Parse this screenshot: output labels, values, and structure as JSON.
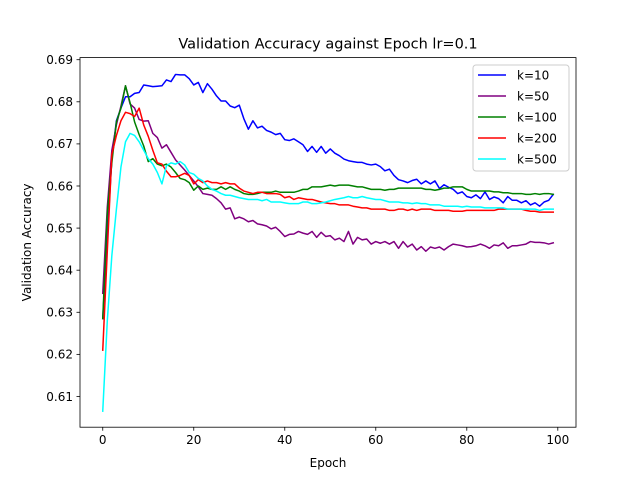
{
  "chart_data": {
    "type": "line",
    "title": "Validation Accuracy against Epoch lr=0.1",
    "xlabel": "Epoch",
    "ylabel": "Validation Accuracy",
    "xlim": [
      -5,
      104
    ],
    "ylim": [
      0.6027,
      0.6905
    ],
    "xticks": [
      0,
      20,
      40,
      60,
      80,
      100
    ],
    "yticks": [
      0.61,
      0.62,
      0.63,
      0.64,
      0.65,
      0.66,
      0.67,
      0.68,
      0.69
    ],
    "grid": false,
    "legend_position": "top-right",
    "series": [
      {
        "name": "k=10",
        "color": "#0000ff",
        "x": [
          0,
          1,
          2,
          3,
          4,
          5,
          6,
          7,
          8,
          9,
          10,
          11,
          12,
          13,
          14,
          15,
          16,
          17,
          18,
          19,
          20,
          21,
          22,
          23,
          24,
          25,
          26,
          27,
          28,
          29,
          30,
          31,
          32,
          33,
          34,
          35,
          36,
          37,
          38,
          39,
          40,
          41,
          42,
          43,
          44,
          45,
          46,
          47,
          48,
          49,
          50,
          51,
          52,
          53,
          54,
          55,
          56,
          57,
          58,
          59,
          60,
          61,
          62,
          63,
          64,
          65,
          66,
          67,
          68,
          69,
          70,
          71,
          72,
          73,
          74,
          75,
          76,
          77,
          78,
          79,
          80,
          81,
          82,
          83,
          84,
          85,
          86,
          87,
          88,
          89,
          90,
          91,
          92,
          93,
          94,
          95,
          96,
          97,
          98,
          99
        ],
        "y": [
          0.6285,
          0.648,
          0.6665,
          0.6755,
          0.6785,
          0.6812,
          0.6812,
          0.682,
          0.6822,
          0.684,
          0.6838,
          0.6836,
          0.6837,
          0.6838,
          0.6852,
          0.6848,
          0.6865,
          0.6864,
          0.6864,
          0.6855,
          0.684,
          0.6846,
          0.6822,
          0.6843,
          0.683,
          0.6814,
          0.6802,
          0.6802,
          0.679,
          0.6786,
          0.6792,
          0.676,
          0.6735,
          0.6755,
          0.6738,
          0.6742,
          0.6732,
          0.6728,
          0.6722,
          0.6725,
          0.671,
          0.6708,
          0.6712,
          0.6705,
          0.6698,
          0.6682,
          0.6694,
          0.668,
          0.6694,
          0.6678,
          0.6688,
          0.6678,
          0.6672,
          0.6664,
          0.666,
          0.6658,
          0.6656,
          0.6656,
          0.6652,
          0.665,
          0.6652,
          0.6646,
          0.6636,
          0.664,
          0.6625,
          0.6615,
          0.6612,
          0.6608,
          0.6613,
          0.6616,
          0.6605,
          0.6612,
          0.6605,
          0.6612,
          0.6594,
          0.6603,
          0.6597,
          0.6592,
          0.6582,
          0.6586,
          0.6575,
          0.6572,
          0.6579,
          0.657,
          0.6586,
          0.6568,
          0.6574,
          0.657,
          0.656,
          0.6575,
          0.6566,
          0.6566,
          0.656,
          0.6565,
          0.6555,
          0.656,
          0.6552,
          0.6562,
          0.6566,
          0.658
        ]
      },
      {
        "name": "k=50",
        "color": "#800080",
        "x": [
          0,
          1,
          2,
          3,
          4,
          5,
          6,
          7,
          8,
          9,
          10,
          11,
          12,
          13,
          14,
          15,
          16,
          17,
          18,
          19,
          20,
          21,
          22,
          23,
          24,
          25,
          26,
          27,
          28,
          29,
          30,
          31,
          32,
          33,
          34,
          35,
          36,
          37,
          38,
          39,
          40,
          41,
          42,
          43,
          44,
          45,
          46,
          47,
          48,
          49,
          50,
          51,
          52,
          53,
          54,
          55,
          56,
          57,
          58,
          59,
          60,
          61,
          62,
          63,
          64,
          65,
          66,
          67,
          68,
          69,
          70,
          71,
          72,
          73,
          74,
          75,
          76,
          77,
          78,
          79,
          80,
          81,
          82,
          83,
          84,
          85,
          86,
          87,
          88,
          89,
          90,
          91,
          92,
          93,
          94,
          95,
          96,
          97,
          98,
          99
        ],
        "y": [
          0.6345,
          0.655,
          0.6685,
          0.6745,
          0.679,
          0.6838,
          0.6795,
          0.6785,
          0.6758,
          0.6754,
          0.6755,
          0.6725,
          0.6715,
          0.669,
          0.6698,
          0.668,
          0.6662,
          0.665,
          0.6638,
          0.6625,
          0.6612,
          0.6598,
          0.6582,
          0.658,
          0.6578,
          0.657,
          0.656,
          0.6545,
          0.6548,
          0.6522,
          0.6526,
          0.6522,
          0.6515,
          0.6518,
          0.651,
          0.6508,
          0.6505,
          0.6498,
          0.6502,
          0.6492,
          0.648,
          0.6485,
          0.6486,
          0.6492,
          0.6488,
          0.6485,
          0.6492,
          0.6478,
          0.649,
          0.648,
          0.6482,
          0.6472,
          0.6476,
          0.6468,
          0.6492,
          0.6462,
          0.6478,
          0.6472,
          0.6474,
          0.6462,
          0.6468,
          0.6464,
          0.6468,
          0.6462,
          0.6468,
          0.6452,
          0.6468,
          0.6455,
          0.6462,
          0.6448,
          0.6456,
          0.6445,
          0.6455,
          0.6452,
          0.6455,
          0.6448,
          0.6456,
          0.6462,
          0.646,
          0.6458,
          0.6455,
          0.6456,
          0.6458,
          0.6462,
          0.6458,
          0.6452,
          0.646,
          0.6458,
          0.6465,
          0.6452,
          0.6458,
          0.6458,
          0.646,
          0.6462,
          0.6468,
          0.6466,
          0.6466,
          0.6465,
          0.6462,
          0.6465
        ]
      },
      {
        "name": "k=100",
        "color": "#008000",
        "x": [
          0,
          1,
          2,
          3,
          4,
          5,
          6,
          7,
          8,
          9,
          10,
          11,
          12,
          13,
          14,
          15,
          16,
          17,
          18,
          19,
          20,
          21,
          22,
          23,
          24,
          25,
          26,
          27,
          28,
          29,
          30,
          31,
          32,
          33,
          34,
          35,
          36,
          37,
          38,
          39,
          40,
          41,
          42,
          43,
          44,
          45,
          46,
          47,
          48,
          49,
          50,
          51,
          52,
          53,
          54,
          55,
          56,
          57,
          58,
          59,
          60,
          61,
          62,
          63,
          64,
          65,
          66,
          67,
          68,
          69,
          70,
          71,
          72,
          73,
          74,
          75,
          76,
          77,
          78,
          79,
          80,
          81,
          82,
          83,
          84,
          85,
          86,
          87,
          88,
          89,
          90,
          91,
          92,
          93,
          94,
          95,
          96,
          97,
          98,
          99
        ],
        "y": [
          0.6285,
          0.6535,
          0.6655,
          0.6752,
          0.6785,
          0.6838,
          0.6798,
          0.6752,
          0.6722,
          0.6695,
          0.6658,
          0.6665,
          0.6652,
          0.6648,
          0.6652,
          0.6645,
          0.6632,
          0.6618,
          0.6615,
          0.6608,
          0.659,
          0.66,
          0.6592,
          0.6595,
          0.6592,
          0.6592,
          0.6598,
          0.6592,
          0.6598,
          0.6592,
          0.6588,
          0.6582,
          0.658,
          0.658,
          0.6582,
          0.6585,
          0.6585,
          0.6585,
          0.6588,
          0.6585,
          0.6585,
          0.6585,
          0.6585,
          0.6588,
          0.6592,
          0.6592,
          0.6598,
          0.6598,
          0.6598,
          0.66,
          0.6602,
          0.66,
          0.6602,
          0.6602,
          0.6602,
          0.66,
          0.6598,
          0.6598,
          0.6595,
          0.6592,
          0.6592,
          0.6592,
          0.659,
          0.6592,
          0.6592,
          0.6595,
          0.6595,
          0.6595,
          0.6595,
          0.6595,
          0.6595,
          0.6592,
          0.6592,
          0.659,
          0.6592,
          0.6595,
          0.6595,
          0.6598,
          0.6598,
          0.6598,
          0.6592,
          0.6588,
          0.6588,
          0.6588,
          0.6588,
          0.6588,
          0.6586,
          0.6586,
          0.6584,
          0.6584,
          0.6582,
          0.6582,
          0.6582,
          0.658,
          0.658,
          0.6582,
          0.658,
          0.6582,
          0.6582,
          0.658
        ]
      },
      {
        "name": "k=200",
        "color": "#ff0000",
        "x": [
          0,
          1,
          2,
          3,
          4,
          5,
          6,
          7,
          8,
          9,
          10,
          11,
          12,
          13,
          14,
          15,
          16,
          17,
          18,
          19,
          20,
          21,
          22,
          23,
          24,
          25,
          26,
          27,
          28,
          29,
          30,
          31,
          32,
          33,
          34,
          35,
          36,
          37,
          38,
          39,
          40,
          41,
          42,
          43,
          44,
          45,
          46,
          47,
          48,
          49,
          50,
          51,
          52,
          53,
          54,
          55,
          56,
          57,
          58,
          59,
          60,
          61,
          62,
          63,
          64,
          65,
          66,
          67,
          68,
          69,
          70,
          71,
          72,
          73,
          74,
          75,
          76,
          77,
          78,
          79,
          80,
          81,
          82,
          83,
          84,
          85,
          86,
          87,
          88,
          89,
          90,
          91,
          92,
          93,
          94,
          95,
          96,
          97,
          98,
          99
        ],
        "y": [
          0.621,
          0.6445,
          0.6675,
          0.672,
          0.6755,
          0.6775,
          0.6772,
          0.6765,
          0.6785,
          0.6745,
          0.6718,
          0.6685,
          0.6655,
          0.6652,
          0.6635,
          0.6622,
          0.6622,
          0.6625,
          0.663,
          0.6625,
          0.6605,
          0.6615,
          0.6608,
          0.6612,
          0.6608,
          0.6608,
          0.6605,
          0.6608,
          0.6605,
          0.6605,
          0.6595,
          0.6588,
          0.6585,
          0.6582,
          0.6585,
          0.6585,
          0.6582,
          0.6582,
          0.6582,
          0.658,
          0.6572,
          0.6575,
          0.6568,
          0.6572,
          0.657,
          0.6568,
          0.6568,
          0.6565,
          0.6562,
          0.656,
          0.6558,
          0.6558,
          0.6555,
          0.6555,
          0.6555,
          0.6552,
          0.655,
          0.6548,
          0.6548,
          0.6545,
          0.6545,
          0.6545,
          0.6545,
          0.6542,
          0.6542,
          0.6545,
          0.6545,
          0.6542,
          0.6545,
          0.6542,
          0.6545,
          0.6545,
          0.6545,
          0.6542,
          0.6542,
          0.6542,
          0.6542,
          0.654,
          0.654,
          0.654,
          0.6542,
          0.6542,
          0.6542,
          0.6542,
          0.6542,
          0.6542,
          0.6542,
          0.6545,
          0.6545,
          0.6545,
          0.6545,
          0.6545,
          0.6545,
          0.6542,
          0.654,
          0.654,
          0.6538,
          0.6538,
          0.6538,
          0.6538
        ]
      },
      {
        "name": "k=500",
        "color": "#00ffff",
        "x": [
          0,
          1,
          2,
          3,
          4,
          5,
          6,
          7,
          8,
          9,
          10,
          11,
          12,
          13,
          14,
          15,
          16,
          17,
          18,
          19,
          20,
          21,
          22,
          23,
          24,
          25,
          26,
          27,
          28,
          29,
          30,
          31,
          32,
          33,
          34,
          35,
          36,
          37,
          38,
          39,
          40,
          41,
          42,
          43,
          44,
          45,
          46,
          47,
          48,
          49,
          50,
          51,
          52,
          53,
          54,
          55,
          56,
          57,
          58,
          59,
          60,
          61,
          62,
          63,
          64,
          65,
          66,
          67,
          68,
          69,
          70,
          71,
          72,
          73,
          74,
          75,
          76,
          77,
          78,
          79,
          80,
          81,
          82,
          83,
          84,
          85,
          86,
          87,
          88,
          89,
          90,
          91,
          92,
          93,
          94,
          95,
          96,
          97,
          98,
          99
        ],
        "y": [
          0.6065,
          0.628,
          0.6435,
          0.6545,
          0.6645,
          0.6705,
          0.6725,
          0.672,
          0.6705,
          0.6685,
          0.6665,
          0.6652,
          0.6632,
          0.6605,
          0.6648,
          0.6655,
          0.6652,
          0.6658,
          0.665,
          0.6632,
          0.6628,
          0.6618,
          0.6612,
          0.66,
          0.6592,
          0.6588,
          0.6582,
          0.6578,
          0.6578,
          0.6575,
          0.6572,
          0.657,
          0.6568,
          0.6568,
          0.6568,
          0.6565,
          0.6568,
          0.6562,
          0.6562,
          0.6562,
          0.656,
          0.6558,
          0.6558,
          0.6558,
          0.6562,
          0.6562,
          0.6558,
          0.6558,
          0.656,
          0.6562,
          0.6565,
          0.6568,
          0.657,
          0.6572,
          0.6575,
          0.6572,
          0.6572,
          0.6575,
          0.6572,
          0.657,
          0.6568,
          0.6568,
          0.6565,
          0.6562,
          0.6562,
          0.6562,
          0.656,
          0.656,
          0.6558,
          0.656,
          0.6558,
          0.6558,
          0.6555,
          0.6555,
          0.6555,
          0.6552,
          0.6552,
          0.6552,
          0.6552,
          0.655,
          0.6552,
          0.655,
          0.655,
          0.655,
          0.6548,
          0.6548,
          0.6548,
          0.6548,
          0.6548,
          0.6545,
          0.6545,
          0.6545,
          0.6545,
          0.6545,
          0.6545,
          0.6545,
          0.6542,
          0.6545,
          0.6545,
          0.6545
        ]
      }
    ]
  }
}
